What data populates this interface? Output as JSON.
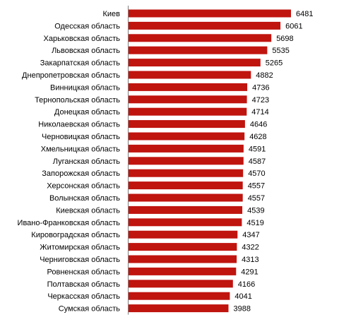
{
  "chart_data": {
    "type": "bar",
    "orientation": "horizontal",
    "title": "",
    "xlabel": "",
    "ylabel": "",
    "categories": [
      "Киев",
      "Одесская область",
      "Харьковская область",
      "Львовская область",
      "Закарпатская область",
      "Днепропетровская область",
      "Винницкая область",
      "Тернопольская область",
      "Донецкая область",
      "Николаевская область",
      "Черновицкая область",
      "Хмельницкая область",
      "Луганская область",
      "Запорожская область",
      "Херсонская область",
      "Волынская область",
      "Киевская область",
      "Ивано-Франковская область",
      "Кировоградская область",
      "Житомирская область",
      "Черниговская область",
      "Ровненская область",
      "Полтавская область",
      "Черкасская область",
      "Сумская область"
    ],
    "values": [
      6481,
      6061,
      5698,
      5535,
      5265,
      4882,
      4736,
      4723,
      4714,
      4646,
      4628,
      4591,
      4587,
      4570,
      4557,
      4557,
      4539,
      4519,
      4347,
      4322,
      4313,
      4291,
      4166,
      4041,
      3988
    ],
    "bar_color": "#C0140F",
    "axis_color": "#808080",
    "xlim": [
      0,
      7000
    ],
    "grid": false,
    "legend": "none",
    "data_labels": true
  }
}
